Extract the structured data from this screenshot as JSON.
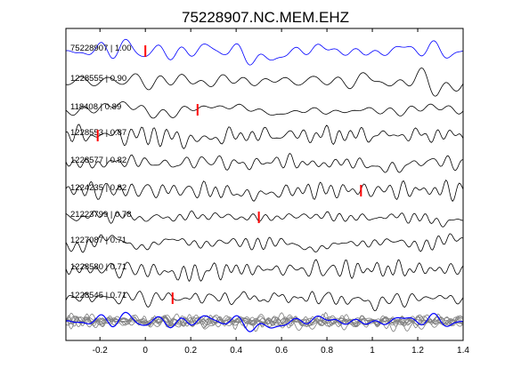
{
  "chart_data": {
    "type": "line",
    "title": "75228907.NC.MEM.EHZ",
    "xlabel": "",
    "ylabel": "",
    "xlim": [
      -0.35,
      1.4
    ],
    "x_ticks": [
      "-0.2",
      "0",
      "0.2",
      "0.4",
      "0.6",
      "0.8",
      "1",
      "1.2",
      "1.4"
    ],
    "x_tick_values": [
      -0.2,
      0,
      0.2,
      0.4,
      0.6,
      0.8,
      1.0,
      1.2,
      1.4
    ],
    "grid": false,
    "colors": {
      "reference_trace": "#0000ff",
      "trace": "#000000",
      "pick_marker": "#ff0000",
      "stack_overlay": "#808080"
    },
    "series": [
      {
        "name": "75228907 | 1.00",
        "pick_time": 0.0,
        "reference": true
      },
      {
        "name": "1228555 | 0.90",
        "pick_time": null
      },
      {
        "name": "118408 | 0.89",
        "pick_time": 0.23
      },
      {
        "name": "1228553 | 0.87",
        "pick_time": -0.21
      },
      {
        "name": "1228577 | 0.82",
        "pick_time": null
      },
      {
        "name": "1224235 | 0.82",
        "pick_time": 0.95
      },
      {
        "name": "21223799 | 0.78",
        "pick_time": 0.5
      },
      {
        "name": "1227087 | 0.71",
        "pick_time": null
      },
      {
        "name": "1228580 | 0.71",
        "pick_time": null
      },
      {
        "name": "1228545 | 0.71",
        "pick_time": 0.12
      }
    ],
    "stack_panel": {
      "overlay_count": 9,
      "reference_color": "#0000ff"
    }
  }
}
